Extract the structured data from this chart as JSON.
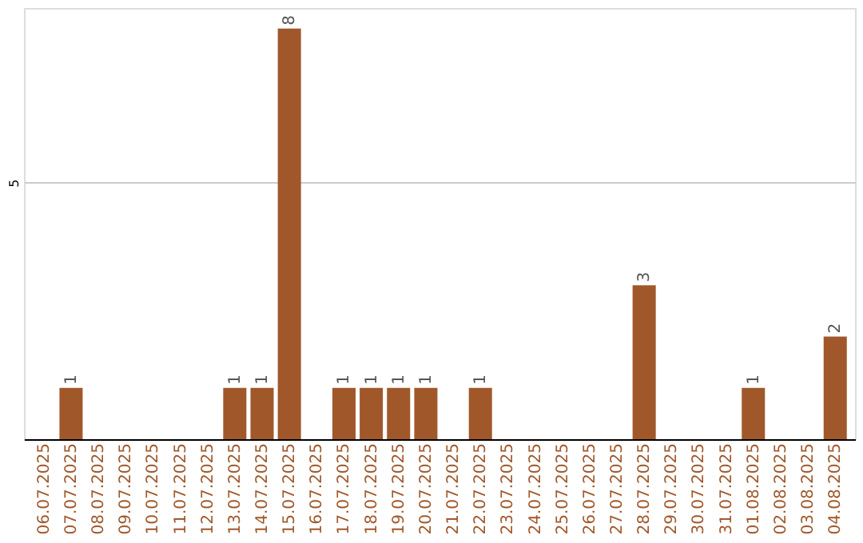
{
  "chart_data": {
    "type": "bar",
    "categories": [
      "06.07.2025",
      "07.07.2025",
      "08.07.2025",
      "09.07.2025",
      "10.07.2025",
      "11.07.2025",
      "12.07.2025",
      "13.07.2025",
      "14.07.2025",
      "15.07.2025",
      "16.07.2025",
      "17.07.2025",
      "18.07.2025",
      "19.07.2025",
      "20.07.2025",
      "21.07.2025",
      "22.07.2025",
      "23.07.2025",
      "24.07.2025",
      "25.07.2025",
      "26.07.2025",
      "27.07.2025",
      "28.07.2025",
      "29.07.2025",
      "30.07.2025",
      "31.07.2025",
      "01.08.2025",
      "02.08.2025",
      "03.08.2025",
      "04.08.2025"
    ],
    "values": [
      0,
      1,
      0,
      0,
      0,
      0,
      0,
      1,
      1,
      8,
      0,
      1,
      1,
      1,
      1,
      0,
      1,
      0,
      0,
      0,
      0,
      0,
      3,
      0,
      0,
      0,
      1,
      0,
      0,
      2
    ],
    "value_labels": [
      null,
      "1",
      null,
      null,
      null,
      null,
      null,
      "1",
      "1",
      "8",
      null,
      "1",
      "1",
      "1",
      "1",
      null,
      "1",
      null,
      null,
      null,
      null,
      null,
      "3",
      null,
      null,
      null,
      "1",
      null,
      null,
      "2"
    ],
    "color": "#a0582b",
    "ylim": [
      0,
      8.4
    ],
    "yticks": [
      5
    ],
    "grid": "y"
  }
}
